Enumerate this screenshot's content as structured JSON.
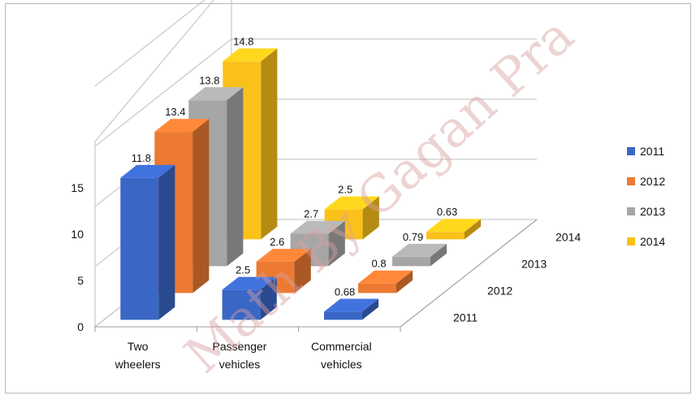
{
  "chart_data": {
    "type": "bar",
    "title": "",
    "categories": [
      "Two wheelers",
      "Passenger vehicles",
      "Commercial vehicles"
    ],
    "category_lines": [
      [
        "Two",
        "wheelers"
      ],
      [
        "Passenger",
        "vehicles"
      ],
      [
        "Commercial",
        "vehicles"
      ]
    ],
    "series": [
      {
        "name": "2011",
        "color": "#3a67c6",
        "values": [
          11.8,
          2.5,
          0.68
        ]
      },
      {
        "name": "2012",
        "color": "#ec7a33",
        "values": [
          13.4,
          2.6,
          0.8
        ]
      },
      {
        "name": "2013",
        "color": "#a6a6a6",
        "values": [
          13.8,
          2.7,
          0.79
        ]
      },
      {
        "name": "2014",
        "color": "#fbc11b",
        "values": [
          14.8,
          2.5,
          0.63
        ]
      }
    ],
    "yticks": [
      0,
      5,
      10,
      15
    ],
    "ylim": [
      0,
      20
    ],
    "depth_labels": [
      "2011",
      "2012",
      "2013",
      "2014"
    ],
    "legend_position": "right",
    "grid": true
  },
  "watermark": "Math By Gagan Pra"
}
